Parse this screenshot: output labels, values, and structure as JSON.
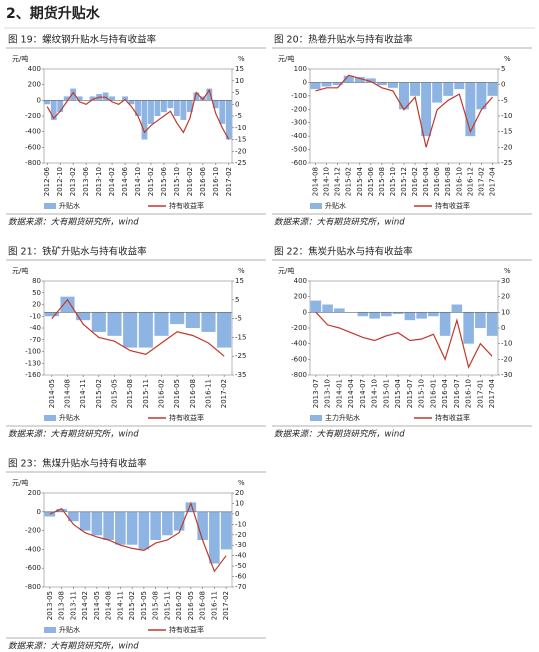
{
  "header": {
    "title": "2、期货升贴水"
  },
  "chart_data": [
    {
      "type": "bar-line",
      "title": "图 19：螺纹钢升贴水与持有收益率",
      "source": "数据来源：大有期货研究所，wind",
      "y_label": "元/吨",
      "y2_label": "%",
      "x": [
        "2012-06",
        "2012-08",
        "2012-10",
        "2012-12",
        "2013-02",
        "2013-04",
        "2013-06",
        "2013-08",
        "2013-10",
        "2013-12",
        "2014-02",
        "2014-04",
        "2014-06",
        "2014-08",
        "2014-10",
        "2014-12",
        "2015-02",
        "2015-04",
        "2015-06",
        "2015-08",
        "2015-10",
        "2015-12",
        "2016-02",
        "2016-04",
        "2016-06",
        "2016-08",
        "2016-10",
        "2016-12",
        "2017-02"
      ],
      "xticks": [
        "2012-06",
        "2012-10",
        "2013-02",
        "2013-06",
        "2013-10",
        "2014-02",
        "2014-06",
        "2014-10",
        "2015-02",
        "2015-06",
        "2015-10",
        "2016-02",
        "2016-06",
        "2016-10",
        "2017-02"
      ],
      "ylim": [
        -800,
        400
      ],
      "yticks": [
        400,
        200,
        0,
        -200,
        -400,
        -600,
        -800
      ],
      "y2lim": [
        -25,
        15
      ],
      "y2ticks": [
        15,
        10,
        5,
        0,
        -5,
        -10,
        -15,
        -20,
        -25
      ],
      "series": [
        {
          "name": "升贴水",
          "kind": "bar",
          "color": "#8db4e2",
          "values": [
            -50,
            -250,
            -150,
            50,
            150,
            50,
            0,
            50,
            80,
            100,
            50,
            0,
            50,
            -50,
            -200,
            -500,
            -300,
            -200,
            -150,
            -100,
            -200,
            -250,
            -150,
            100,
            50,
            150,
            -100,
            -300,
            -500
          ]
        },
        {
          "name": "持有收益率",
          "kind": "line",
          "axis": "y2",
          "color": "#c0392b",
          "values": [
            -1,
            -6,
            -3,
            1,
            5,
            1,
            0,
            2,
            3,
            3,
            1,
            0,
            2,
            -1,
            -5,
            -12,
            -9,
            -7,
            -5,
            -3,
            -8,
            -12,
            -6,
            5,
            2,
            6,
            -4,
            -10,
            -15
          ]
        }
      ]
    },
    {
      "type": "bar-line",
      "title": "图 20：热卷升贴水与持有收益率",
      "source": "数据来源：大有期货研究所，wind",
      "y_label": "元/吨",
      "y2_label": "%",
      "x": [
        "2014-08",
        "2014-10",
        "2014-12",
        "2015-02",
        "2015-04",
        "2015-06",
        "2015-08",
        "2015-10",
        "2015-12",
        "2016-02",
        "2016-04",
        "2016-06",
        "2016-08",
        "2016-10",
        "2016-12",
        "2017-02",
        "2017-04"
      ],
      "xticks": [
        "2014-08",
        "2014-10",
        "2014-12",
        "2015-02",
        "2015-04",
        "2015-06",
        "2015-08",
        "2015-10",
        "2015-12",
        "2016-02",
        "2016-04",
        "2016-06",
        "2016-08",
        "2016-10",
        "2016-12",
        "2017-02",
        "2017-04"
      ],
      "ylim": [
        -600,
        100
      ],
      "yticks": [
        100,
        0,
        -100,
        -200,
        -300,
        -400,
        -500,
        -600
      ],
      "y2lim": [
        -25,
        5
      ],
      "y2ticks": [
        5,
        0,
        -5,
        -10,
        -15,
        -20,
        -25
      ],
      "series": [
        {
          "name": "升贴水",
          "kind": "bar",
          "color": "#8db4e2",
          "values": [
            -50,
            -30,
            -20,
            50,
            40,
            30,
            -20,
            -40,
            -200,
            -100,
            -400,
            -150,
            -100,
            -50,
            -400,
            -200,
            -100
          ]
        },
        {
          "name": "持有收益率",
          "kind": "line",
          "axis": "y2",
          "color": "#c0392b",
          "values": [
            -2,
            -1,
            -1,
            3,
            2,
            1,
            -1,
            -2,
            -8,
            -4,
            -20,
            -8,
            -5,
            -3,
            -15,
            -8,
            -4
          ]
        }
      ]
    },
    {
      "type": "bar-line",
      "title": "图 21：铁矿升贴水与持有收益率",
      "source": "数据来源：大有期货研究所，wind",
      "y_label": "元/吨",
      "y2_label": "%",
      "x": [
        "2014-05",
        "2014-08",
        "2014-11",
        "2015-02",
        "2015-05",
        "2015-08",
        "2015-11",
        "2016-02",
        "2016-05",
        "2016-08",
        "2016-11",
        "2017-02"
      ],
      "xticks": [
        "2014-05",
        "2014-08",
        "2014-11",
        "2015-02",
        "2015-05",
        "2015-08",
        "2015-11",
        "2016-02",
        "2016-05",
        "2016-08",
        "2016-11",
        "2017-02"
      ],
      "ylim": [
        -160,
        80
      ],
      "yticks": [
        80,
        50,
        20,
        -10,
        -40,
        -70,
        -100,
        -130,
        -160
      ],
      "y2lim": [
        -35,
        15
      ],
      "y2ticks": [
        15,
        5,
        -5,
        -15,
        -25,
        -35
      ],
      "series": [
        {
          "name": "升贴水",
          "kind": "bar",
          "color": "#8db4e2",
          "values": [
            -10,
            40,
            -20,
            -50,
            -60,
            -90,
            -90,
            -60,
            -30,
            -40,
            -50,
            -90
          ]
        },
        {
          "name": "持有收益率",
          "kind": "line",
          "axis": "y2",
          "color": "#c0392b",
          "values": [
            -5,
            5,
            -8,
            -15,
            -17,
            -22,
            -24,
            -18,
            -12,
            -14,
            -18,
            -25
          ]
        }
      ]
    },
    {
      "type": "bar-line",
      "title": "图 22：焦炭升贴水与持有收益率",
      "source": "数据来源：大有期货研究所，wind",
      "y_label": "元/吨",
      "y2_label": "%",
      "x": [
        "2013-07",
        "2013-10",
        "2014-01",
        "2014-04",
        "2014-07",
        "2014-10",
        "2015-01",
        "2015-04",
        "2015-07",
        "2015-10",
        "2016-01",
        "2016-04",
        "2016-07",
        "2016-10",
        "2017-01",
        "2017-04"
      ],
      "xticks": [
        "2013-07",
        "2013-10",
        "2014-01",
        "2014-04",
        "2014-07",
        "2014-10",
        "2015-01",
        "2015-04",
        "2015-07",
        "2015-10",
        "2016-01",
        "2016-04",
        "2016-07",
        "2016-10",
        "2017-01",
        "2017-04"
      ],
      "ylim": [
        -800,
        400
      ],
      "yticks": [
        400,
        200,
        0,
        -200,
        -400,
        -600,
        -800
      ],
      "y2lim": [
        -30,
        30
      ],
      "y2ticks": [
        30,
        20,
        10,
        0,
        -10,
        -20,
        -30
      ],
      "series": [
        {
          "name": "主力升贴水",
          "kind": "bar",
          "color": "#8db4e2",
          "values": [
            150,
            100,
            50,
            0,
            -50,
            -80,
            -50,
            -20,
            -100,
            -80,
            -50,
            -300,
            100,
            -400,
            -200,
            -300
          ]
        },
        {
          "name": "持有收益率",
          "kind": "line",
          "axis": "y2",
          "color": "#c0392b",
          "values": [
            10,
            2,
            0,
            -3,
            -6,
            -8,
            -5,
            -3,
            -8,
            -7,
            -4,
            -20,
            5,
            -25,
            -10,
            -18
          ]
        }
      ]
    },
    {
      "type": "bar-line",
      "title": "图 23：焦煤升贴水与持有收益率",
      "source": "数据来源：大有期货研究所，wind",
      "y_label": "元/吨",
      "y2_label": "%",
      "x": [
        "2013-05",
        "2013-08",
        "2013-11",
        "2014-02",
        "2014-05",
        "2014-08",
        "2014-11",
        "2015-02",
        "2015-05",
        "2015-08",
        "2015-11",
        "2016-02",
        "2016-05",
        "2016-08",
        "2016-11",
        "2017-02"
      ],
      "xticks": [
        "2013-05",
        "2013-08",
        "2013-11",
        "2014-02",
        "2014-05",
        "2014-08",
        "2014-11",
        "2015-02",
        "2015-05",
        "2015-08",
        "2015-11",
        "2016-02",
        "2016-05",
        "2016-08",
        "2016-11",
        "2017-02"
      ],
      "ylim": [
        -800,
        200
      ],
      "yticks": [
        200,
        0,
        -200,
        -400,
        -600,
        -800
      ],
      "y2lim": [
        -70,
        20
      ],
      "y2ticks": [
        20,
        10,
        0,
        -10,
        -20,
        -30,
        -40,
        -50,
        -60,
        -70
      ],
      "series": [
        {
          "name": "升贴水",
          "kind": "bar",
          "color": "#8db4e2",
          "values": [
            -50,
            30,
            -100,
            -200,
            -250,
            -300,
            -350,
            -350,
            -400,
            -300,
            -250,
            -200,
            100,
            -300,
            -550,
            -400
          ]
        },
        {
          "name": "持有收益率",
          "kind": "line",
          "axis": "y2",
          "color": "#c0392b",
          "values": [
            0,
            5,
            -10,
            -18,
            -22,
            -25,
            -30,
            -33,
            -35,
            -28,
            -25,
            -18,
            10,
            -25,
            -55,
            -40
          ]
        }
      ]
    }
  ]
}
